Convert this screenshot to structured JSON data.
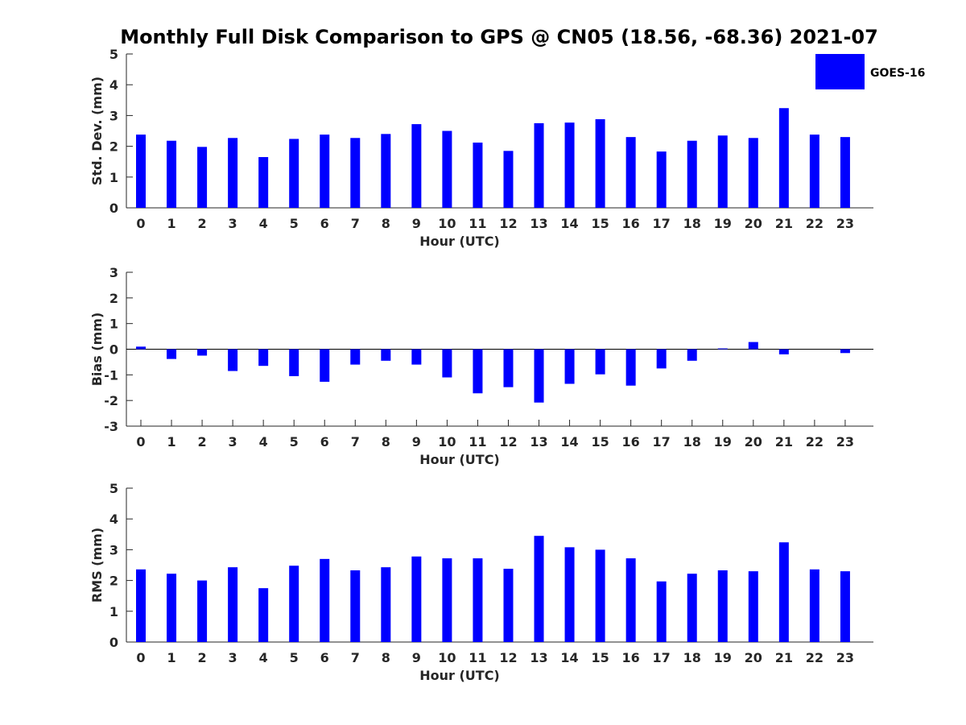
{
  "chart_data": {
    "title": "Monthly Full Disk Comparison to GPS @ CN05 (18.56, -68.36) 2021-07",
    "type": "bar",
    "legend": {
      "label": "GOES-16",
      "color": "#0000ff",
      "placement": "top-right"
    },
    "bar_color": "#0000ff",
    "categories": [
      "0",
      "1",
      "2",
      "3",
      "4",
      "5",
      "6",
      "7",
      "8",
      "9",
      "10",
      "11",
      "12",
      "13",
      "14",
      "15",
      "16",
      "17",
      "18",
      "19",
      "20",
      "21",
      "22",
      "23"
    ],
    "panels": [
      {
        "id": "std",
        "ylabel": "Std. Dev. (mm)",
        "xlabel": "Hour (UTC)",
        "ylim": [
          0,
          5
        ],
        "yticks": [
          "0",
          "1",
          "2",
          "3",
          "4",
          "5"
        ],
        "values": [
          2.38,
          2.18,
          1.98,
          2.27,
          1.65,
          2.24,
          2.38,
          2.27,
          2.4,
          2.72,
          2.5,
          2.12,
          1.85,
          2.75,
          2.77,
          2.88,
          2.3,
          1.83,
          2.18,
          2.35,
          2.27,
          3.24,
          2.38,
          2.3
        ]
      },
      {
        "id": "bias",
        "ylabel": "Bias (mm)",
        "xlabel": "Hour (UTC)",
        "ylim": [
          -3,
          3
        ],
        "yticks": [
          "-3",
          "-2",
          "-1",
          "0",
          "1",
          "2",
          "3"
        ],
        "zero_line": true,
        "values": [
          0.1,
          -0.38,
          -0.25,
          -0.85,
          -0.65,
          -1.05,
          -1.27,
          -0.6,
          -0.45,
          -0.6,
          -1.1,
          -1.72,
          -1.48,
          -2.08,
          -1.35,
          -0.98,
          -1.42,
          -0.75,
          -0.45,
          0.03,
          0.28,
          -0.2,
          0.0,
          -0.15
        ]
      },
      {
        "id": "rms",
        "ylabel": "RMS (mm)",
        "xlabel": "Hour (UTC)",
        "ylim": [
          0,
          5
        ],
        "yticks": [
          "0",
          "1",
          "2",
          "3",
          "4",
          "5"
        ],
        "values": [
          2.36,
          2.22,
          2.0,
          2.43,
          1.75,
          2.48,
          2.7,
          2.33,
          2.43,
          2.78,
          2.72,
          2.72,
          2.38,
          3.45,
          3.08,
          3.0,
          2.72,
          1.97,
          2.22,
          2.33,
          2.3,
          3.24,
          2.36,
          2.3
        ]
      }
    ]
  }
}
